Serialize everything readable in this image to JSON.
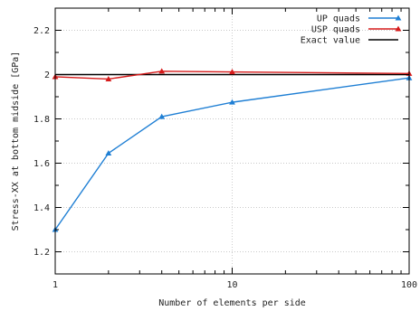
{
  "chart_data": {
    "type": "line",
    "xlabel": "Number of elements per side",
    "ylabel": "Stress-XX at bottom midside [GPa]",
    "x_scale": "log",
    "xlim": [
      1,
      100
    ],
    "ylim": [
      1.1,
      2.3
    ],
    "x_ticks": [
      {
        "value": 1,
        "label": "1"
      },
      {
        "value": 10,
        "label": "10"
      },
      {
        "value": 100,
        "label": "100"
      }
    ],
    "y_ticks": [
      {
        "value": 1.2,
        "label": "1.2"
      },
      {
        "value": 1.4,
        "label": "1.4"
      },
      {
        "value": 1.6,
        "label": "1.6"
      },
      {
        "value": 1.8,
        "label": "1.8"
      },
      {
        "value": 2.0,
        "label": "2"
      },
      {
        "value": 2.2,
        "label": "2.2"
      }
    ],
    "grid": true,
    "legend_position": "top-right",
    "series": [
      {
        "name": "UP  quads",
        "color": "#1f7fd4",
        "marker": "triangle",
        "x": [
          1,
          2,
          4,
          10,
          100
        ],
        "y": [
          1.3,
          1.645,
          1.81,
          1.875,
          1.985
        ]
      },
      {
        "name": "USP quads",
        "color": "#d61a1a",
        "marker": "triangle",
        "x": [
          1,
          2,
          4,
          10,
          100
        ],
        "y": [
          1.99,
          1.98,
          2.015,
          2.012,
          2.005
        ]
      },
      {
        "name": "Exact value",
        "color": "#000000",
        "marker": "none",
        "x": [
          1,
          100
        ],
        "y": [
          2.0,
          2.0
        ]
      }
    ]
  }
}
